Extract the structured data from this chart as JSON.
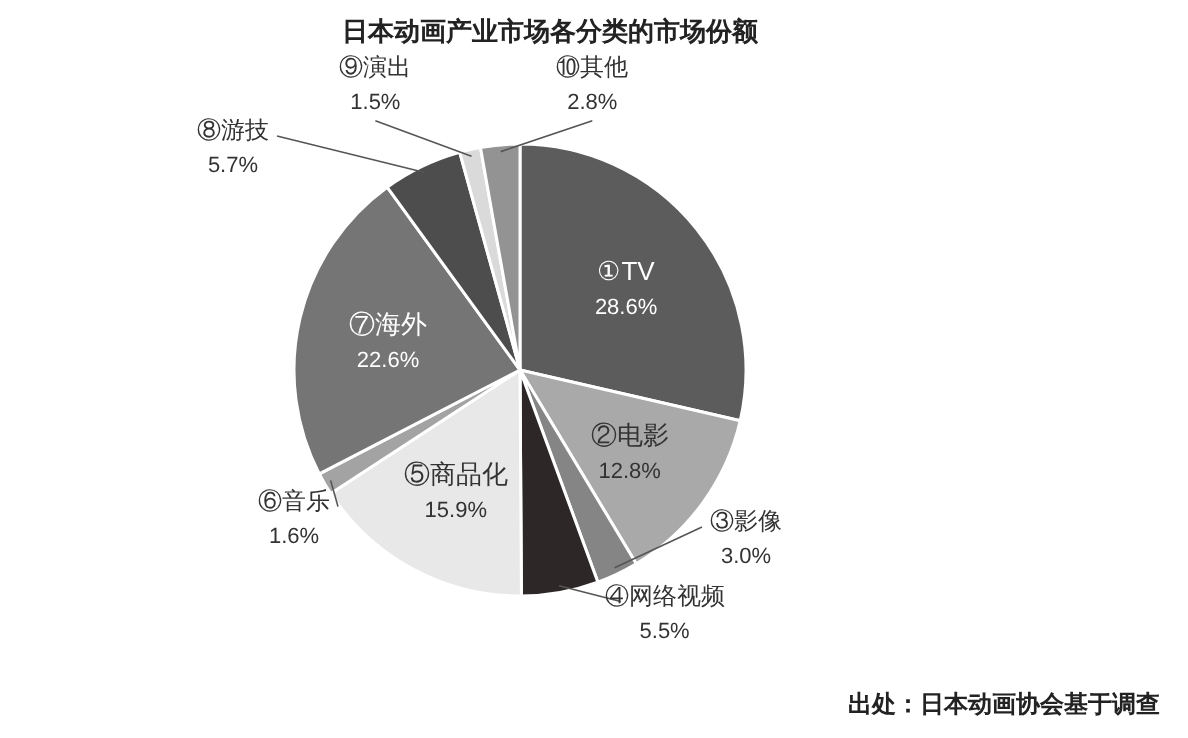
{
  "chart_data": {
    "type": "pie",
    "title": "日本动画产业市场各分类的市场份额",
    "categories": [
      "①TV",
      "②电影",
      "③影像",
      "④网络视频",
      "⑤商品化",
      "⑥音乐",
      "⑦海外",
      "⑧游技",
      "⑨演出",
      "⑩其他"
    ],
    "values": [
      28.6,
      12.8,
      3.0,
      5.5,
      15.9,
      1.6,
      22.6,
      5.7,
      1.5,
      2.8
    ],
    "colors": [
      "#5c5c5c",
      "#a9a9a9",
      "#858585",
      "#2e2727",
      "#e8e8e8",
      "#a3a3a3",
      "#757575",
      "#4d4d4d",
      "#dadada",
      "#939393"
    ],
    "value_labels": [
      "28.6%",
      "12.8%",
      "3.0%",
      "5.5%",
      "15.9%",
      "1.6%",
      "22.6%",
      "5.7%",
      "1.5%",
      "2.8%"
    ],
    "annotations": [
      "出处：日本动画协会基于调查"
    ]
  }
}
